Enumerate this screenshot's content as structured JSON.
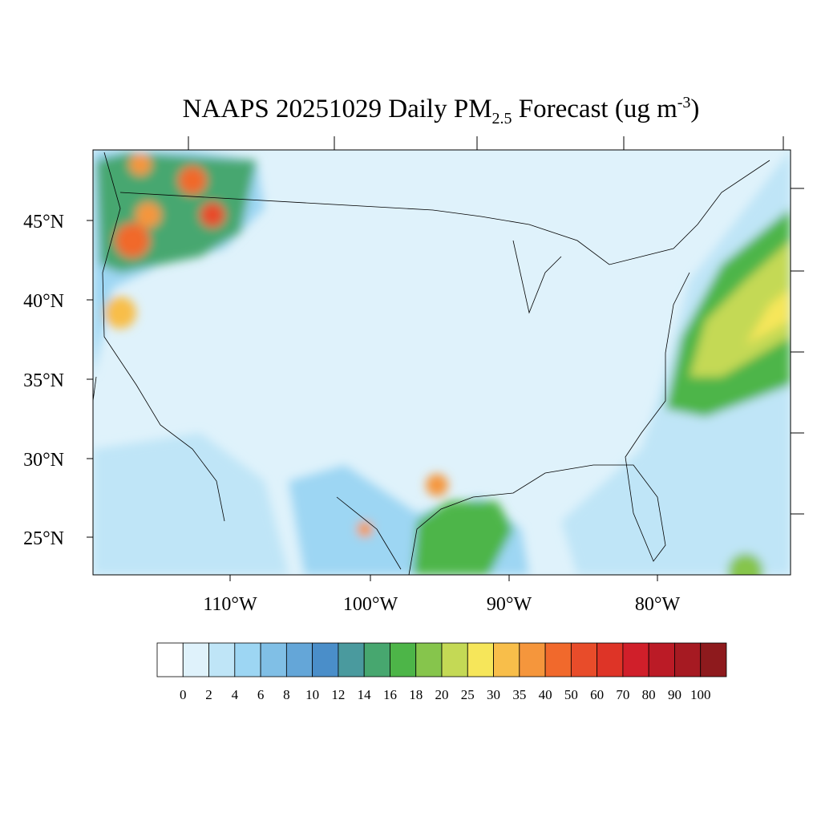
{
  "title": {
    "main": "NAAPS 20251029 Daily PM",
    "sub": "2.5",
    "rest": " Forecast (ug m",
    "sup": "-3",
    "end": ")"
  },
  "lat_labels": [
    "45°N",
    "40°N",
    "35°N",
    "30°N",
    "25°N"
  ],
  "lon_labels": [
    "110°W",
    "100°W",
    "90°W",
    "80°W"
  ],
  "colorbar": {
    "levels": [
      0,
      2,
      4,
      6,
      8,
      10,
      12,
      14,
      16,
      18,
      20,
      25,
      30,
      35,
      40,
      50,
      60,
      70,
      80,
      90,
      100
    ],
    "colors": [
      "#ffffff",
      "#dff2fb",
      "#bfe5f7",
      "#9dd6f3",
      "#80bfe6",
      "#64a6d8",
      "#4a8ec9",
      "#4a9a9e",
      "#47a76f",
      "#4db548",
      "#86c54c",
      "#c4d955",
      "#f6e65a",
      "#f8be4a",
      "#f5963c",
      "#f1692c",
      "#e84c2a",
      "#de3427",
      "#d01f2a",
      "#bb1b26",
      "#a61a22",
      "#8e1a1d"
    ]
  }
}
